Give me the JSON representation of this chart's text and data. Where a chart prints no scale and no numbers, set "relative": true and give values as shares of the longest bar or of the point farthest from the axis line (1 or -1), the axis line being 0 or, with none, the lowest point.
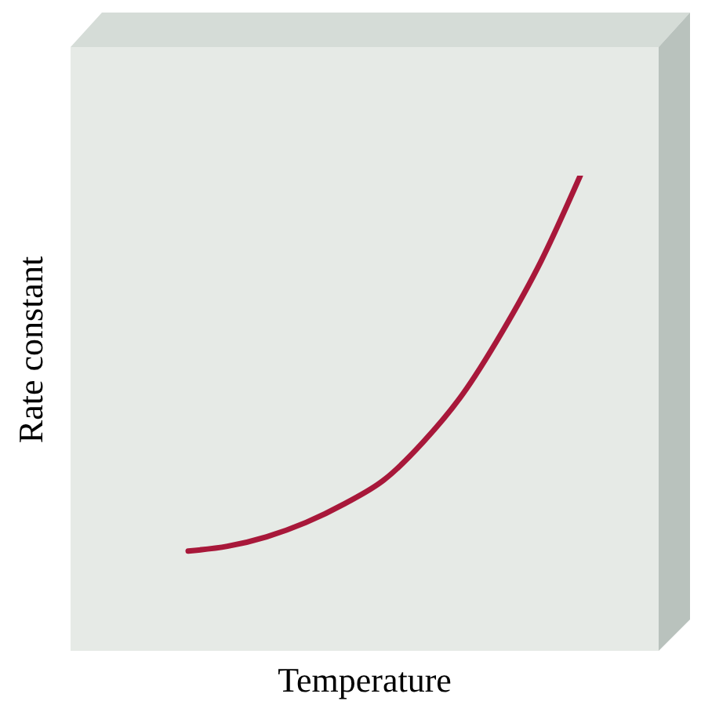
{
  "chart_data": {
    "type": "line",
    "xlabel": "Temperature",
    "ylabel": "Rate constant",
    "relative": true,
    "categories": [
      null,
      null,
      null,
      null,
      null,
      null,
      null,
      null,
      null,
      null,
      null,
      null,
      null,
      null,
      null,
      null
    ],
    "series": [
      {
        "color": "#a8183a",
        "values": [
          null,
          null,
          null,
          0.21,
          0.22,
          0.24,
          0.27,
          0.31,
          0.36,
          0.44,
          0.54,
          0.67,
          0.82,
          1.0,
          null,
          null
        ]
      }
    ]
  }
}
